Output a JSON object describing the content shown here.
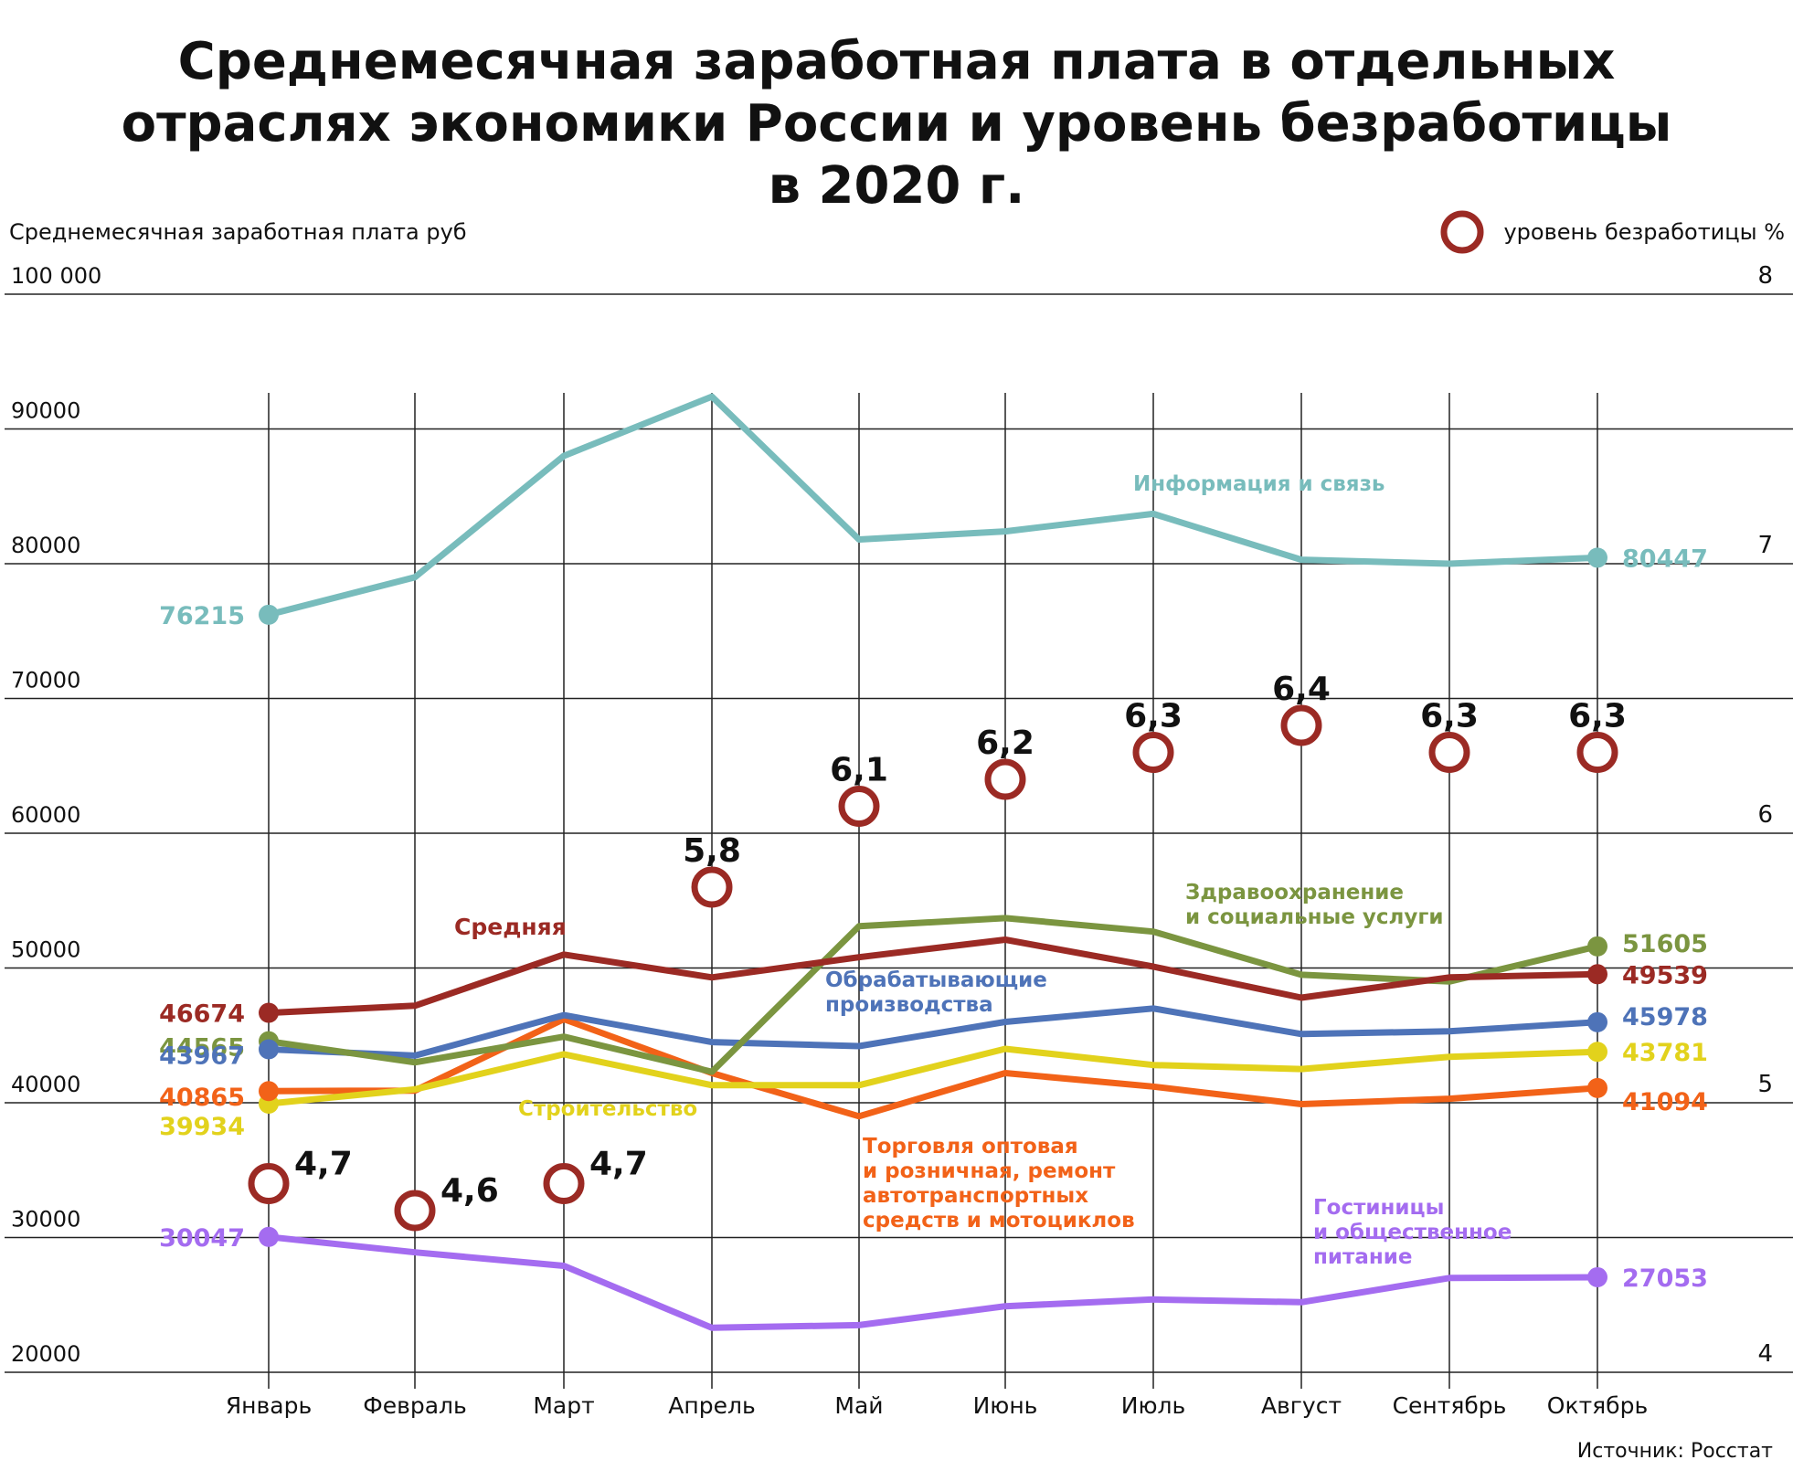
{
  "title_lines": [
    "Среднемесячная заработная плата в отдельных",
    "отраслях экономики России и уровень безработицы",
    "в 2020 г."
  ],
  "source": "Источник: Росстат",
  "chart_data": {
    "type": "line",
    "title": "Среднемесячная заработная плата в отдельных отраслях экономики России и уровень безработицы в 2020 г.",
    "ylabel": "Среднемесячная заработная плата руб",
    "ylim": [
      20000,
      100000
    ],
    "yticks": [
      "20000",
      "30000",
      "40000",
      "50000",
      "60000",
      "70000",
      "80000",
      "90000",
      "100 000"
    ],
    "y2label": "уровень безработицы %",
    "y2lim": [
      4,
      8
    ],
    "y2ticks": [
      "4",
      "5",
      "6",
      "7",
      "8"
    ],
    "categories": [
      "Январь",
      "Февраль",
      "Март",
      "Апрель",
      "Май",
      "Июнь",
      "Июль",
      "Август",
      "Сентябрь",
      "Октябрь"
    ],
    "grid": true,
    "legend": "top-right",
    "series": [
      {
        "name": "Информация и связь",
        "color": "#78bcbc",
        "values": [
          76215,
          79000,
          88000,
          92400,
          81800,
          82400,
          83700,
          80300,
          80000,
          80447
        ],
        "first_label": "76215",
        "last_label": "80447"
      },
      {
        "name": "Здравоохранение и социальные услуги",
        "color": "#7b9540",
        "values": [
          44565,
          43000,
          44900,
          42300,
          53100,
          53700,
          52700,
          49500,
          49000,
          51605
        ],
        "first_label": "44565",
        "last_label": "51605"
      },
      {
        "name": "Средняя",
        "color": "#9b2a24",
        "values": [
          46674,
          47200,
          51000,
          49300,
          50800,
          52100,
          50100,
          47800,
          49300,
          49539
        ],
        "first_label": "46674",
        "last_label": "49539"
      },
      {
        "name": "Обрабатывающие производства",
        "color": "#4e73b8",
        "values": [
          43967,
          43500,
          46500,
          44500,
          44200,
          46000,
          47000,
          45100,
          45300,
          45978
        ],
        "first_label": "43967",
        "last_label": "45978"
      },
      {
        "name": "Строительство",
        "color": "#e2d21c",
        "values": [
          39934,
          41000,
          43600,
          41300,
          41300,
          44000,
          42800,
          42500,
          43400,
          43781
        ],
        "first_label": "39934",
        "last_label": "43781"
      },
      {
        "name": "Торговля оптовая и розничная, ремонт автотранспортных средств и мотоциклов",
        "color": "#f26218",
        "values": [
          40865,
          40900,
          46200,
          42200,
          39000,
          42200,
          41200,
          39900,
          40300,
          41094
        ],
        "first_label": "40865",
        "last_label": "41094"
      },
      {
        "name": "Гостиницы и общественное питание",
        "color": "#a46cf0",
        "values": [
          30047,
          28900,
          27900,
          23300,
          23500,
          24900,
          25400,
          25200,
          27000,
          27053
        ],
        "first_label": "30047",
        "last_label": "27053"
      }
    ],
    "series_names_display": {
      "info": "Информация и связь",
      "health": [
        "Здравоохранение",
        "и социальные услуги"
      ],
      "avg": "Средняя",
      "manuf": [
        "Обрабатывающие",
        "производства"
      ],
      "constr": "Строительство",
      "trade": [
        "Торговля оптовая",
        "и розничная, ремонт",
        "автотранспортных",
        "средств и мотоциклов"
      ],
      "hotels": [
        "Гостиницы",
        "и общественное",
        "питание"
      ]
    },
    "unemployment": {
      "name": "уровень безработицы %",
      "color": "#9b2a24",
      "values": [
        4.7,
        4.6,
        4.7,
        5.8,
        6.1,
        6.2,
        6.3,
        6.4,
        6.3,
        6.3
      ],
      "labels": [
        "4,7",
        "4,6",
        "4,7",
        "5,8",
        "6,1",
        "6,2",
        "6,3",
        "6,4",
        "6,3",
        "6,3"
      ]
    }
  }
}
